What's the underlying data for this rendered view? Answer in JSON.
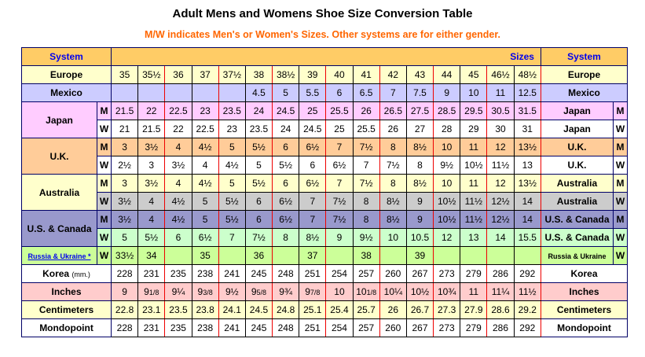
{
  "title": "Adult Mens and Womens Shoe Size Conversion Table",
  "subtitle": "M/W indicates Men's or Women's Sizes. Other systems are for either gender.",
  "header": {
    "system_label": "System",
    "sizes_label": "Sizes"
  },
  "colors": {
    "header": "#FFCC66",
    "header_text": "#0000EE",
    "subtitle": "#FF6600",
    "grid_red": "#EE0000",
    "grid_navy": "#000066"
  },
  "rows": {
    "europe": {
      "label": "Europe",
      "values": [
        "35",
        "35½",
        "36",
        "37",
        "37½",
        "38",
        "38½",
        "39",
        "40",
        "41",
        "42",
        "43",
        "44",
        "45",
        "46½",
        "48½"
      ]
    },
    "mexico": {
      "label": "Mexico",
      "values": [
        "",
        "",
        "",
        "",
        "",
        "4.5",
        "5",
        "5.5",
        "6",
        "6.5",
        "7",
        "7.5",
        "9",
        "10",
        "11",
        "12.5"
      ]
    },
    "japan": {
      "label": "Japan",
      "m": {
        "flag": "M",
        "values": [
          "21.5",
          "22",
          "22.5",
          "23",
          "23.5",
          "24",
          "24.5",
          "25",
          "25.5",
          "26",
          "26.5",
          "27.5",
          "28.5",
          "29.5",
          "30.5",
          "31.5"
        ]
      },
      "w": {
        "flag": "W",
        "values": [
          "21",
          "21.5",
          "22",
          "22.5",
          "23",
          "23.5",
          "24",
          "24.5",
          "25",
          "25.5",
          "26",
          "27",
          "28",
          "29",
          "30",
          "31"
        ]
      }
    },
    "uk": {
      "label": "U.K.",
      "m": {
        "flag": "M",
        "values": [
          "3",
          "3½",
          "4",
          "4½",
          "5",
          "5½",
          "6",
          "6½",
          "7",
          "7½",
          "8",
          "8½",
          "10",
          "11",
          "12",
          "13½"
        ]
      },
      "w": {
        "flag": "W",
        "values": [
          "2½",
          "3",
          "3½",
          "4",
          "4½",
          "5",
          "5½",
          "6",
          "6½",
          "7",
          "7½",
          "8",
          "9½",
          "10½",
          "11½",
          "13"
        ]
      }
    },
    "australia": {
      "label": "Australia",
      "m": {
        "flag": "M",
        "values": [
          "3",
          "3½",
          "4",
          "4½",
          "5",
          "5½",
          "6",
          "6½",
          "7",
          "7½",
          "8",
          "8½",
          "10",
          "11",
          "12",
          "13½"
        ]
      },
      "w": {
        "flag": "W",
        "values": [
          "3½",
          "4",
          "4½",
          "5",
          "5½",
          "6",
          "6½",
          "7",
          "7½",
          "8",
          "8½",
          "9",
          "10½",
          "11½",
          "12½",
          "14"
        ]
      }
    },
    "us_canada": {
      "label": "U.S. & Canada",
      "m": {
        "flag": "M",
        "values": [
          "3½",
          "4",
          "4½",
          "5",
          "5½",
          "6",
          "6½",
          "7",
          "7½",
          "8",
          "8½",
          "9",
          "10½",
          "11½",
          "12½",
          "14"
        ]
      },
      "w": {
        "flag": "W",
        "values": [
          "5",
          "5½",
          "6",
          "6½",
          "7",
          "7½",
          "8",
          "8½",
          "9",
          "9½",
          "10",
          "10.5",
          "12",
          "13",
          "14",
          "15.5"
        ]
      }
    },
    "russia_ukraine": {
      "label_link": "Russia & Ukraine *",
      "label_right": "Russia & Ukraine",
      "flag": "W",
      "values": [
        "33½",
        "34",
        "",
        "35",
        "",
        "36",
        "",
        "37",
        "",
        "38",
        "",
        "39",
        "",
        "",
        "",
        ""
      ]
    },
    "korea": {
      "label": "Korea",
      "unit": "(mm.)",
      "label_right": "Korea",
      "values": [
        "228",
        "231",
        "235",
        "238",
        "241",
        "245",
        "248",
        "251",
        "254",
        "257",
        "260",
        "267",
        "273",
        "279",
        "286",
        "292"
      ]
    },
    "inches": {
      "label": "Inches",
      "values": [
        "9",
        "9 1/8",
        "9¼",
        "9 3/8",
        "9½",
        "9 5/8",
        "9¾",
        "9 7/8",
        "10",
        "10 1/8",
        "10¼",
        "10½",
        "10¾",
        "11",
        "11¼",
        "11½"
      ]
    },
    "centimeters": {
      "label": "Centimeters",
      "values": [
        "22.8",
        "23.1",
        "23.5",
        "23.8",
        "24.1",
        "24.5",
        "24.8",
        "25.1",
        "25.4",
        "25.7",
        "26",
        "26.7",
        "27.3",
        "27.9",
        "28.6",
        "29.2"
      ]
    },
    "mondopoint": {
      "label": "Mondopoint",
      "values": [
        "228",
        "231",
        "235",
        "238",
        "241",
        "245",
        "248",
        "251",
        "254",
        "257",
        "260",
        "267",
        "273",
        "279",
        "286",
        "292"
      ]
    }
  }
}
